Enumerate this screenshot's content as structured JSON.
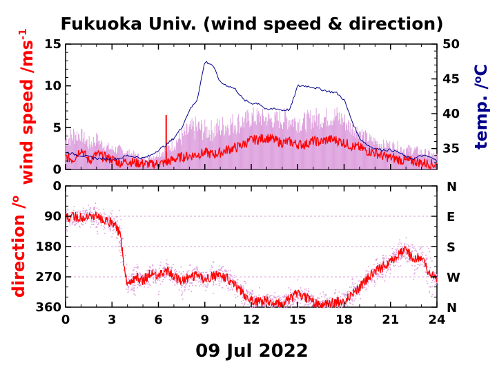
{
  "title": "Fukuoka Univ. (wind speed & direction)",
  "date_label": "09 Jul 2022",
  "colors": {
    "wind_mean": "#ff0000",
    "wind_gust": "#dda0dd",
    "temperature": "#00008b",
    "direction_mean": "#ff0000",
    "direction_samples": "#dda0dd",
    "axis": "#000000",
    "grid": "#dda0dd"
  },
  "chart_data": [
    {
      "type": "line",
      "panel": "top",
      "title": "Fukuoka Univ. (wind speed & direction)",
      "xlabel": "09 Jul 2022",
      "ylabel": "wind speed /ms",
      "ylabel_superscript": "-1",
      "y2label": "temp. /",
      "y2label_unit": "C",
      "y2label_degree": "o",
      "xlim": [
        0,
        24
      ],
      "ylim": [
        0,
        15
      ],
      "y2lim": [
        32,
        50
      ],
      "x_ticks": [
        "0",
        "3",
        "6",
        "9",
        "12",
        "15",
        "18",
        "21",
        "24"
      ],
      "y_ticks": [
        "0",
        "5",
        "10",
        "15"
      ],
      "y2_ticks": [
        "35",
        "40",
        "45",
        "50"
      ],
      "x": [
        0,
        0.5,
        1,
        1.5,
        2,
        2.5,
        3,
        3.5,
        4,
        4.5,
        5,
        5.5,
        6,
        6.5,
        7,
        7.5,
        8,
        8.5,
        9,
        9.5,
        10,
        10.5,
        11,
        11.5,
        12,
        12.5,
        13,
        13.5,
        14,
        14.5,
        15,
        15.5,
        16,
        16.5,
        17,
        17.5,
        18,
        18.5,
        19,
        19.5,
        20,
        20.5,
        21,
        21.5,
        22,
        22.5,
        23,
        23.5,
        24
      ],
      "series": [
        {
          "role": "mean wind speed",
          "axis": "left",
          "values": [
            1.5,
            1.2,
            2.5,
            1.0,
            1.8,
            1.5,
            1.2,
            0.8,
            1.0,
            0.8,
            0.7,
            0.6,
            0.7,
            0.8,
            1.2,
            1.5,
            1.6,
            1.8,
            2.0,
            1.8,
            2.0,
            2.4,
            2.6,
            3.0,
            3.5,
            3.6,
            3.8,
            3.5,
            3.2,
            3.3,
            3.0,
            3.0,
            3.4,
            3.3,
            3.6,
            3.5,
            3.2,
            2.8,
            2.6,
            2.2,
            2.0,
            1.6,
            1.4,
            1.2,
            1.0,
            1.0,
            0.8,
            0.7,
            0.5
          ]
        },
        {
          "role": "gust wind speed",
          "axis": "left",
          "values": [
            4.5,
            5.5,
            5.0,
            4.0,
            4.5,
            3.5,
            3.0,
            3.0,
            2.5,
            2.2,
            1.6,
            1.8,
            2.5,
            3.0,
            4.0,
            5.0,
            6.0,
            6.5,
            6.0,
            6.0,
            6.5,
            6.8,
            7.0,
            7.0,
            7.5,
            7.5,
            7.2,
            7.0,
            7.5,
            7.2,
            7.0,
            7.0,
            7.5,
            7.5,
            7.5,
            7.8,
            7.0,
            6.0,
            5.5,
            4.5,
            4.0,
            3.6,
            3.6,
            3.4,
            3.0,
            3.0,
            2.6,
            2.4,
            2.0
          ]
        },
        {
          "role": "temperature",
          "axis": "right",
          "values": [
            34.5,
            34.2,
            34.0,
            33.8,
            33.6,
            33.5,
            33.5,
            33.6,
            34.0,
            33.8,
            33.6,
            34.0,
            34.8,
            35.5,
            36.5,
            38.0,
            40.5,
            42.0,
            47.5,
            47.0,
            44.5,
            44.0,
            43.5,
            42.0,
            41.5,
            41.5,
            40.5,
            40.8,
            40.5,
            40.6,
            44.0,
            44.0,
            43.8,
            43.5,
            43.2,
            43.0,
            42.0,
            39.0,
            36.5,
            35.5,
            35.0,
            34.8,
            34.8,
            34.5,
            33.8,
            33.5,
            34.0,
            33.8,
            33.2
          ]
        }
      ],
      "spike": {
        "x": 6.5,
        "value": 6.5
      }
    },
    {
      "type": "scatter",
      "panel": "bottom",
      "ylabel": "direction /",
      "ylabel_degree": "o",
      "xlim": [
        0,
        24
      ],
      "ylim": [
        360,
        0
      ],
      "x_ticks": [
        "0",
        "3",
        "6",
        "9",
        "12",
        "15",
        "18",
        "21",
        "24"
      ],
      "y_ticks": [
        "0",
        "90",
        "180",
        "270",
        "360"
      ],
      "y2_ticks": [
        "N",
        "E",
        "S",
        "W",
        "N"
      ],
      "grid": true,
      "x": [
        0,
        0.5,
        1,
        1.5,
        2,
        2.5,
        3,
        3.5,
        4,
        4.5,
        5,
        5.5,
        6,
        6.5,
        7,
        7.5,
        8,
        8.5,
        9,
        9.5,
        10,
        10.5,
        11,
        11.5,
        12,
        12.5,
        13,
        13.5,
        14,
        14.5,
        15,
        15.5,
        16,
        16.5,
        17,
        17.5,
        18,
        18.5,
        19,
        19.5,
        20,
        20.5,
        21,
        21.5,
        22,
        22.5,
        23,
        23.5,
        24
      ],
      "series": [
        {
          "role": "mean direction",
          "values": [
            95,
            90,
            95,
            90,
            92,
            100,
            110,
            140,
            300,
            270,
            280,
            260,
            270,
            250,
            270,
            285,
            270,
            265,
            280,
            270,
            260,
            275,
            300,
            320,
            340,
            345,
            340,
            350,
            345,
            335,
            320,
            330,
            345,
            355,
            350,
            345,
            340,
            320,
            300,
            275,
            255,
            240,
            225,
            200,
            190,
            220,
            210,
            260,
            280
          ]
        },
        {
          "role": "direction samples",
          "values": [
            60,
            110,
            70,
            120,
            50,
            130,
            80,
            200,
            320,
            230,
            300,
            220,
            310,
            230,
            300,
            240,
            310,
            230,
            310,
            220,
            300,
            240,
            330,
            280,
            360,
            310,
            355,
            320,
            360,
            300,
            350,
            290,
            360,
            320,
            350,
            300,
            345,
            280,
            320,
            240,
            290,
            200,
            260,
            160,
            230,
            170,
            250,
            190,
            300
          ]
        }
      ]
    }
  ]
}
